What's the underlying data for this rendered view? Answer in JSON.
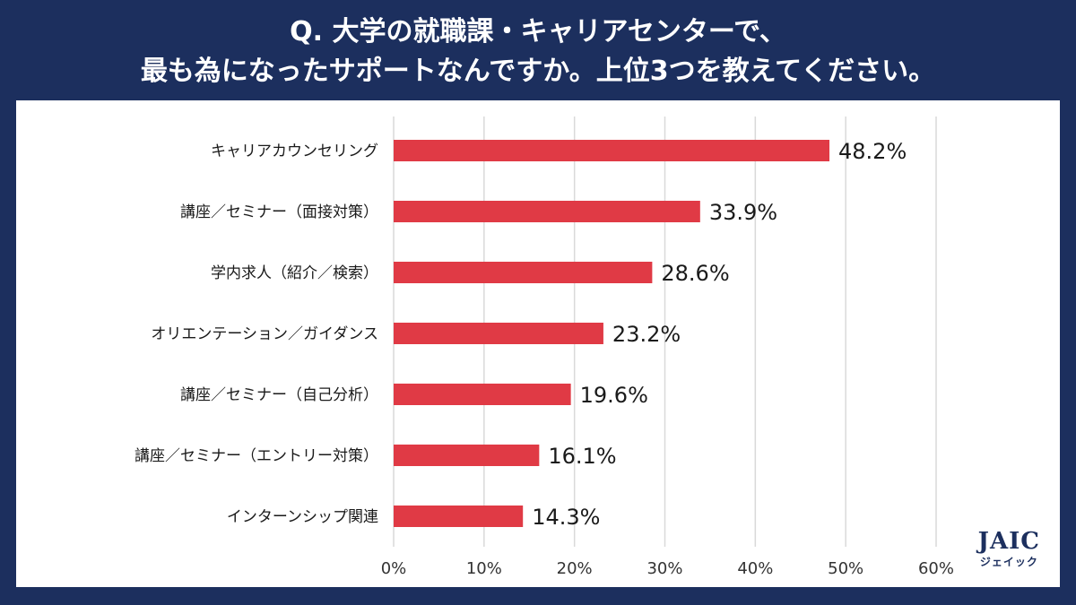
{
  "title_line1": "Q. 大学の就職課・キャリアセンターで、",
  "title_line2": "最も為になったサポートなんですか。上位3つを教えてください。",
  "logo": {
    "main": "JAIC",
    "sub": "ジェイック"
  },
  "colors": {
    "bar": "#e03a45",
    "background": "#1c2f5e",
    "panel": "#ffffff",
    "grid": "#d9d9d9"
  },
  "chart_data": {
    "type": "bar",
    "orientation": "horizontal",
    "categories": [
      "キャリアカウンセリング",
      "講座／セミナー（面接対策）",
      "学内求人（紹介／検索）",
      "オリエンテーション／ガイダンス",
      "講座／セミナー（自己分析）",
      "講座／セミナー（エントリー対策）",
      "インターンシップ関連"
    ],
    "values": [
      48.2,
      33.9,
      28.6,
      23.2,
      19.6,
      16.1,
      14.3
    ],
    "value_labels": [
      "48.2%",
      "33.9%",
      "28.6%",
      "23.2%",
      "19.6%",
      "16.1%",
      "14.3%"
    ],
    "xticks": [
      "0%",
      "10%",
      "20%",
      "30%",
      "40%",
      "50%",
      "60%"
    ],
    "xlim": [
      0,
      60
    ],
    "grid": true
  }
}
